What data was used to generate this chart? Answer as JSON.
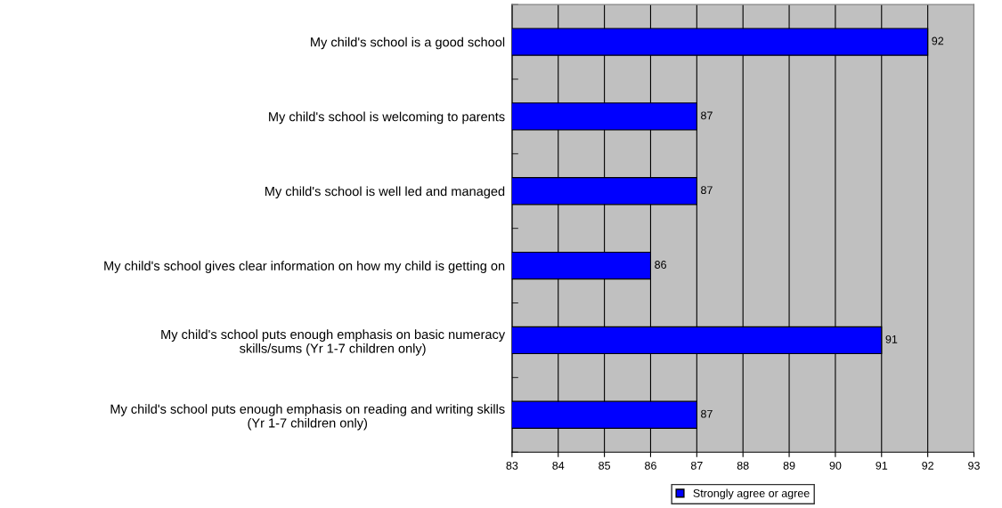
{
  "chart_data": {
    "type": "bar",
    "orientation": "horizontal",
    "categories": [
      "My child's school is a good school",
      "My child's school is welcoming to parents",
      "My child's school is well led and managed",
      "My child's school gives clear information on how my child is getting on",
      "My child's school puts enough emphasis on basic numeracy\nskills/sums (Yr 1-7 children only)",
      "My child's school puts enough emphasis on reading and writing skills\n(Yr 1-7 children only)"
    ],
    "series": [
      {
        "name": "Strongly agree or agree",
        "color": "#0000ff",
        "values": [
          92,
          87,
          87,
          86,
          91,
          87
        ]
      }
    ],
    "xlim": [
      83,
      93
    ],
    "xticks": [
      83,
      84,
      85,
      86,
      87,
      88,
      89,
      90,
      91,
      92,
      93
    ],
    "grid": "x",
    "legend": "bottom",
    "data_labels": true
  }
}
